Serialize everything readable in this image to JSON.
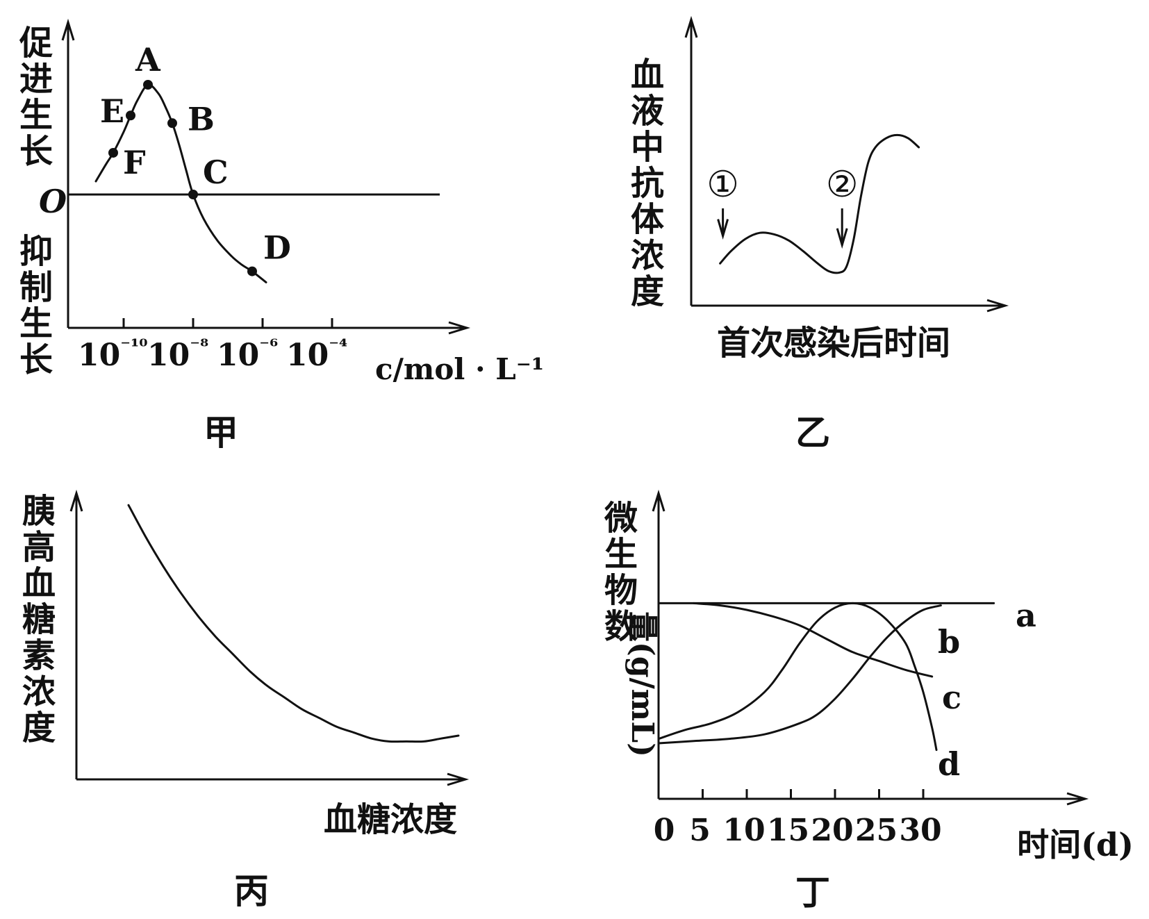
{
  "chart_data": [
    {
      "type": "line",
      "caption": "甲",
      "ylabel_top": "促进生长",
      "ylabel_bottom": "抑制生长",
      "origin_label": "O",
      "xlabel": "c/mol · L⁻¹",
      "x_ticks": [
        "10⁻¹⁰",
        "10⁻⁸",
        "10⁻⁶",
        "10⁻⁴"
      ],
      "points": [
        {
          "label": "A",
          "x": -9.3,
          "y": 1.0
        },
        {
          "label": "B",
          "x": -8.6,
          "y": 0.65
        },
        {
          "label": "C",
          "x": -8.0,
          "y": 0.0
        },
        {
          "label": "D",
          "x": -6.3,
          "y": -0.7
        },
        {
          "label": "E",
          "x": -9.8,
          "y": 0.72
        },
        {
          "label": "F",
          "x": -10.3,
          "y": 0.38
        }
      ],
      "curve": {
        "x": [
          -10.8,
          -10.5,
          -10.3,
          -10.0,
          -9.8,
          -9.6,
          -9.3,
          -9.0,
          -8.8,
          -8.6,
          -8.4,
          -8.2,
          -8.0,
          -7.7,
          -7.3,
          -6.9,
          -6.6,
          -6.3,
          -5.9
        ],
        "y": [
          0.12,
          0.28,
          0.38,
          0.57,
          0.72,
          0.86,
          1.0,
          0.92,
          0.8,
          0.65,
          0.45,
          0.22,
          0.0,
          -0.22,
          -0.42,
          -0.56,
          -0.64,
          -0.7,
          -0.8
        ]
      }
    },
    {
      "type": "line",
      "caption": "乙",
      "ylabel": "血液中抗体浓度",
      "xlabel": "首次感染后时间",
      "markers": [
        {
          "label": "①",
          "x": 0.8,
          "arrow_to_y": 0.32
        },
        {
          "label": "②",
          "x": 4.1,
          "arrow_to_y": 0.26
        }
      ],
      "curve": {
        "x": [
          0.8,
          1.1,
          1.5,
          1.9,
          2.3,
          2.7,
          3.1,
          3.5,
          3.8,
          4.1,
          4.3,
          4.5,
          4.7,
          4.9,
          5.1,
          5.4,
          5.7,
          6.0,
          6.3
        ],
        "y": [
          0.14,
          0.22,
          0.3,
          0.34,
          0.33,
          0.29,
          0.22,
          0.14,
          0.09,
          0.08,
          0.12,
          0.3,
          0.58,
          0.8,
          0.9,
          0.96,
          0.98,
          0.96,
          0.9
        ]
      }
    },
    {
      "type": "line",
      "caption": "丙",
      "ylabel": "胰高血糖素浓度",
      "xlabel": "血糖浓度",
      "curve": {
        "x": [
          1.5,
          2.0,
          2.5,
          3.0,
          3.5,
          4.0,
          4.5,
          5.0,
          5.5,
          6.0,
          6.5,
          7.0,
          7.5,
          8.0,
          8.5,
          9.0,
          9.5,
          10.0,
          10.5,
          11.0
        ],
        "y": [
          0.94,
          0.83,
          0.73,
          0.64,
          0.56,
          0.49,
          0.43,
          0.37,
          0.32,
          0.28,
          0.24,
          0.21,
          0.18,
          0.16,
          0.14,
          0.13,
          0.13,
          0.13,
          0.14,
          0.15
        ]
      }
    },
    {
      "type": "line",
      "caption": "丁",
      "ylabel": "微生物数量(g/mL)",
      "xlabel": "时间(d)",
      "x_ticks": [
        "0",
        "5",
        "10",
        "15",
        "20",
        "25",
        "30"
      ],
      "xlim": [
        0,
        48
      ],
      "series": [
        {
          "name": "a",
          "x": [
            0,
            38
          ],
          "y": [
            0.88,
            0.88
          ]
        },
        {
          "name": "b",
          "x": [
            0,
            4,
            8,
            12,
            16,
            18,
            20,
            22,
            24,
            26,
            28,
            30,
            32
          ],
          "y": [
            0.25,
            0.26,
            0.27,
            0.29,
            0.34,
            0.38,
            0.45,
            0.54,
            0.64,
            0.73,
            0.8,
            0.85,
            0.87
          ]
        },
        {
          "name": "c",
          "x": [
            4,
            7,
            10,
            13,
            16,
            19,
            22,
            25,
            28,
            31
          ],
          "y": [
            0.88,
            0.87,
            0.85,
            0.82,
            0.78,
            0.72,
            0.66,
            0.62,
            0.58,
            0.55
          ]
        },
        {
          "name": "d",
          "x": [
            0,
            3,
            6,
            9,
            12,
            14,
            16,
            18,
            20,
            22,
            24,
            26,
            28,
            29,
            30,
            31,
            31.5
          ],
          "y": [
            0.27,
            0.31,
            0.34,
            0.39,
            0.48,
            0.58,
            0.7,
            0.8,
            0.86,
            0.88,
            0.86,
            0.8,
            0.7,
            0.6,
            0.48,
            0.32,
            0.22
          ]
        }
      ]
    }
  ]
}
